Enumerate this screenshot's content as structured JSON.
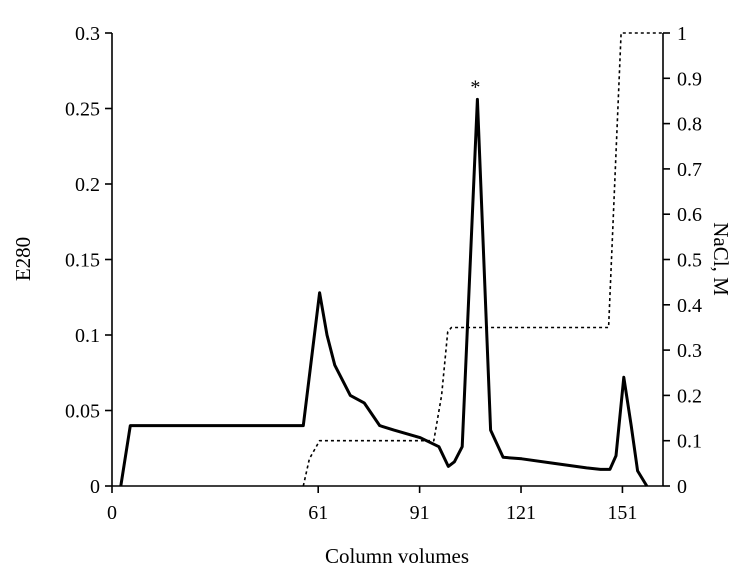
{
  "chart_data": {
    "type": "line",
    "xlabel": "Column volumes",
    "ylabel_left": "E280",
    "ylabel_right": "NaCl, M",
    "xlim": [
      0,
      163
    ],
    "ylim_left": [
      0,
      0.3
    ],
    "ylim_right": [
      0,
      1
    ],
    "grid": false,
    "x_ticks": [
      {
        "value": 0,
        "label": "0"
      },
      {
        "value": 61,
        "label": "61"
      },
      {
        "value": 91,
        "label": "91"
      },
      {
        "value": 121,
        "label": "121"
      },
      {
        "value": 151,
        "label": "151"
      }
    ],
    "y_left_ticks": [
      {
        "value": 0,
        "label": "0"
      },
      {
        "value": 0.05,
        "label": "0.05"
      },
      {
        "value": 0.1,
        "label": "0.1"
      },
      {
        "value": 0.15,
        "label": "0.15"
      },
      {
        "value": 0.2,
        "label": "0.2"
      },
      {
        "value": 0.25,
        "label": "0.25"
      },
      {
        "value": 0.3,
        "label": "0.3"
      }
    ],
    "y_right_ticks": [
      {
        "value": 0,
        "label": "0"
      },
      {
        "value": 0.1,
        "label": "0.1"
      },
      {
        "value": 0.2,
        "label": "0.2"
      },
      {
        "value": 0.3,
        "label": "0.3"
      },
      {
        "value": 0.4,
        "label": "0.4"
      },
      {
        "value": 0.5,
        "label": "0.5"
      },
      {
        "value": 0.6,
        "label": "0.6"
      },
      {
        "value": 0.7,
        "label": "0.7"
      },
      {
        "value": 0.8,
        "label": "0.8"
      },
      {
        "value": 0.9,
        "label": "0.9"
      },
      {
        "value": 1,
        "label": "1"
      }
    ],
    "series": [
      {
        "axis": "left",
        "style": "solid",
        "color": "#000000",
        "points": [
          [
            2.6,
            0.0
          ],
          [
            5.4,
            0.04
          ],
          [
            56.6,
            0.04
          ],
          [
            61.4,
            0.128
          ],
          [
            63.6,
            0.1
          ],
          [
            65.9,
            0.08
          ],
          [
            70.5,
            0.06
          ],
          [
            74.6,
            0.055
          ],
          [
            79.2,
            0.04
          ],
          [
            83.4,
            0.037
          ],
          [
            91.2,
            0.032
          ],
          [
            96.7,
            0.026
          ],
          [
            99.5,
            0.013
          ],
          [
            101.3,
            0.016
          ],
          [
            103.6,
            0.026
          ],
          [
            108.1,
            0.256
          ],
          [
            112.0,
            0.037
          ],
          [
            115.7,
            0.019
          ],
          [
            121.2,
            0.018
          ],
          [
            130.8,
            0.015
          ],
          [
            140.4,
            0.012
          ],
          [
            144.5,
            0.011
          ],
          [
            147.3,
            0.011
          ],
          [
            149.1,
            0.02
          ],
          [
            151.4,
            0.072
          ],
          [
            153.6,
            0.04
          ],
          [
            155.5,
            0.01
          ],
          [
            158.2,
            0.0
          ]
        ]
      },
      {
        "axis": "right",
        "style": "dashed",
        "color": "#000000",
        "points": [
          [
            56.6,
            0.0
          ],
          [
            58.4,
            0.06
          ],
          [
            61.4,
            0.1
          ],
          [
            95.2,
            0.1
          ],
          [
            97.5,
            0.2
          ],
          [
            99.3,
            0.34
          ],
          [
            100.4,
            0.35
          ],
          [
            146.9,
            0.35
          ],
          [
            150.6,
            1.0
          ],
          [
            162.9,
            1.0
          ]
        ]
      }
    ],
    "annotations": [
      {
        "text": "*",
        "x": 107.5,
        "y": 0.256,
        "axis": "left"
      }
    ]
  }
}
